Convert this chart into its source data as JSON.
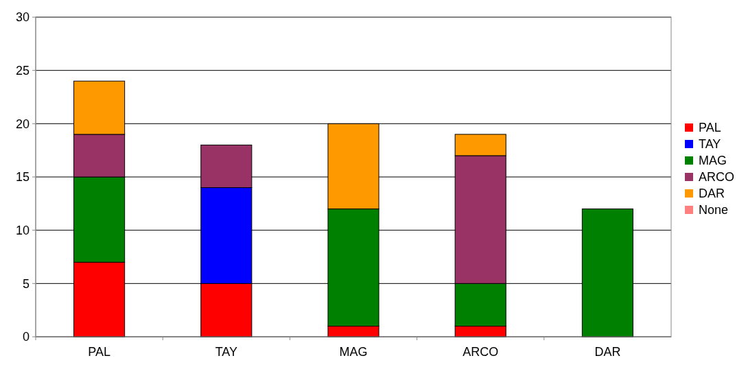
{
  "chart_data": {
    "type": "bar",
    "stacked": true,
    "categories": [
      "PAL",
      "TAY",
      "MAG",
      "ARCO",
      "DAR"
    ],
    "series": [
      {
        "name": "PAL",
        "color": "#ff0000",
        "values": [
          7,
          5,
          1,
          1,
          0
        ]
      },
      {
        "name": "TAY",
        "color": "#0000ff",
        "values": [
          0,
          9,
          0,
          0,
          0
        ]
      },
      {
        "name": "MAG",
        "color": "#008000",
        "values": [
          8,
          0,
          11,
          4,
          12
        ]
      },
      {
        "name": "ARCO",
        "color": "#993366",
        "values": [
          4,
          4,
          0,
          12,
          0
        ]
      },
      {
        "name": "DAR",
        "color": "#ff9900",
        "values": [
          5,
          0,
          8,
          2,
          0
        ]
      },
      {
        "name": "None",
        "color": "#ff8080",
        "values": [
          0,
          0,
          0,
          0,
          0
        ]
      }
    ],
    "ylim": [
      0,
      30
    ],
    "yticks": [
      0,
      5,
      10,
      15,
      20,
      25,
      30
    ],
    "grid": "y",
    "legend": "right"
  }
}
